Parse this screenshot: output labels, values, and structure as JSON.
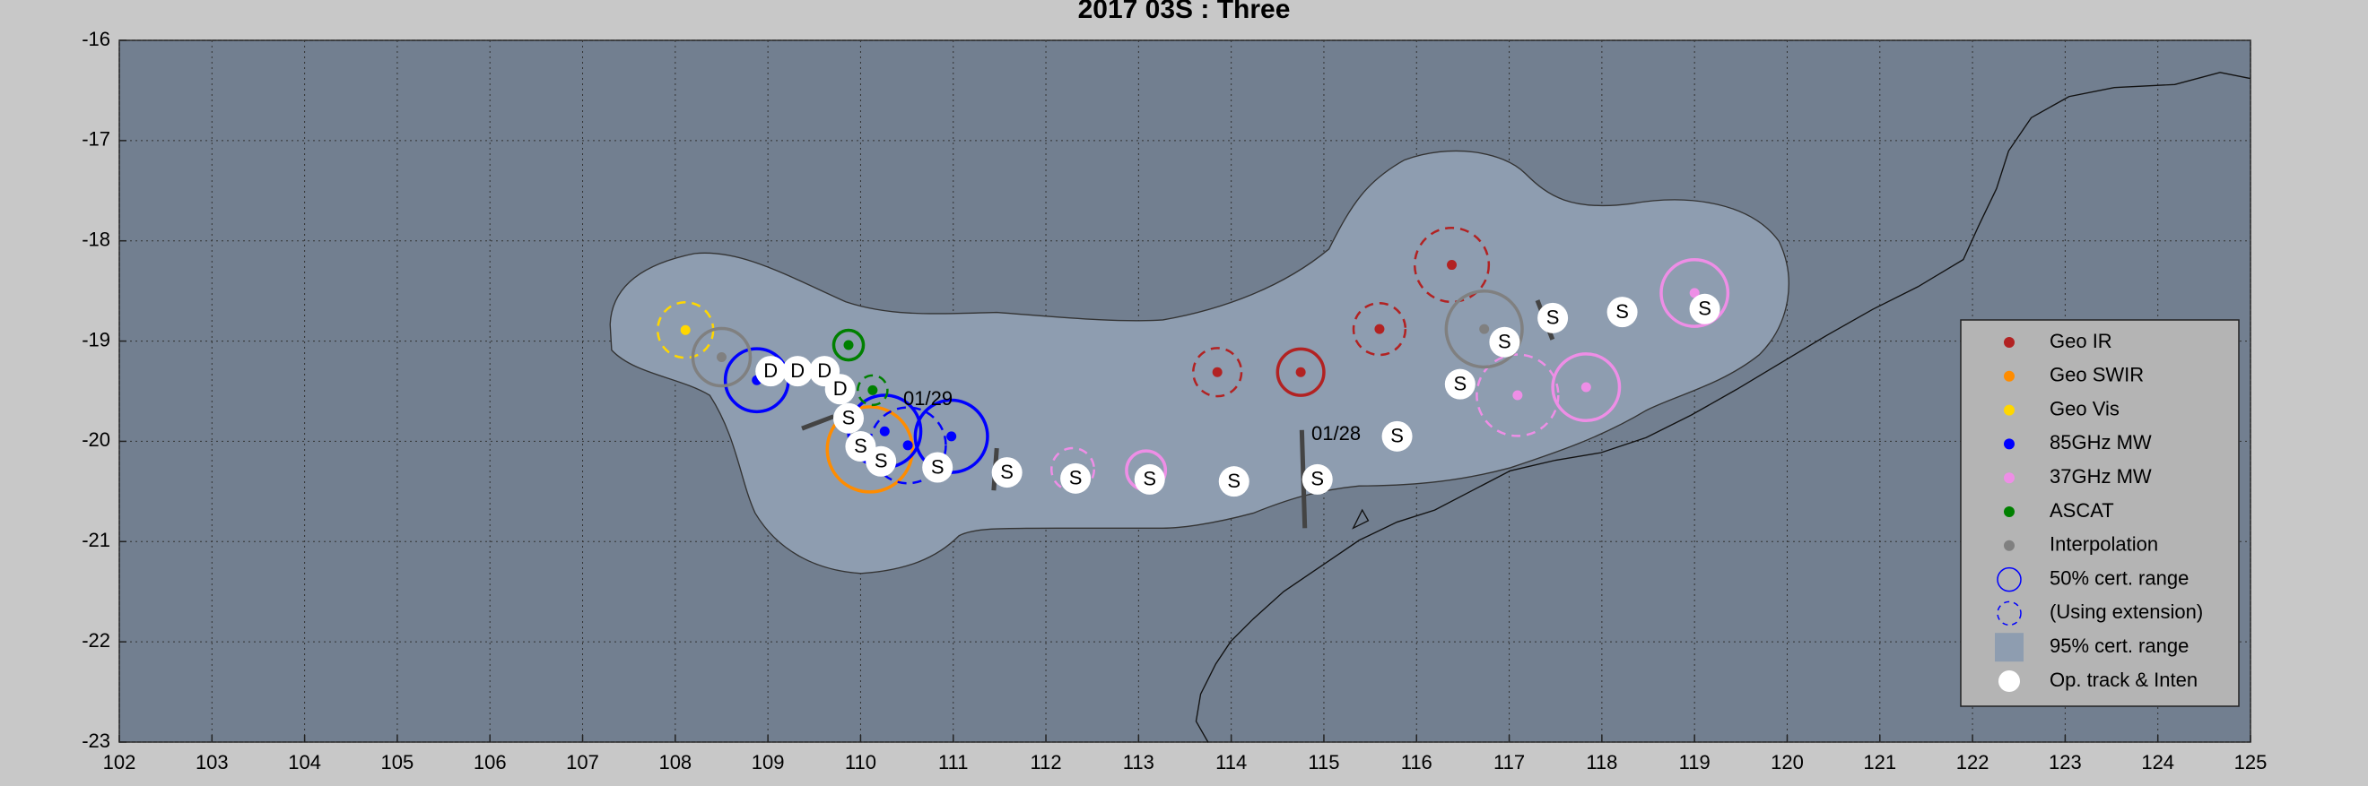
{
  "chart_data": {
    "type": "scatter",
    "title": "2017  03S :  Three",
    "xlim": [
      102,
      125
    ],
    "ylim": [
      -23,
      -16
    ],
    "xticks": [
      102,
      103,
      104,
      105,
      106,
      107,
      108,
      109,
      110,
      111,
      112,
      113,
      114,
      115,
      116,
      117,
      118,
      119,
      120,
      121,
      122,
      123,
      124,
      125
    ],
    "yticks": [
      -16,
      -17,
      -18,
      -19,
      -20,
      -21,
      -22,
      -23
    ],
    "grid": true,
    "legend": "east",
    "series": [
      {
        "name": "Geo IR",
        "color": "#b22222",
        "x": [
          113.85,
          114.75,
          115.6,
          116.38
        ],
        "values": [
          -19.31,
          -19.31,
          -18.88,
          -18.24
        ],
        "radii": [
          0.26,
          0.25,
          0.28,
          0.4
        ],
        "styles": [
          "dashed",
          "solid",
          "dashed",
          "dashed"
        ]
      },
      {
        "name": "Geo SWIR",
        "color": "#ff8c00",
        "x": [
          110.1
        ],
        "values": [
          -20.08
        ],
        "radii": [
          0.46
        ],
        "styles": [
          "solid"
        ]
      },
      {
        "name": "Geo Vis",
        "color": "#ffd700",
        "x": [
          108.11
        ],
        "values": [
          -18.89
        ],
        "radii": [
          0.3
        ],
        "styles": [
          "dashed"
        ]
      },
      {
        "name": "85GHz MW",
        "color": "#0000ff",
        "x": [
          108.88,
          110.26,
          110.51,
          110.98
        ],
        "values": [
          -19.39,
          -19.9,
          -20.04,
          -19.95
        ],
        "radii": [
          0.34,
          0.39,
          0.41,
          0.39
        ],
        "styles": [
          "solid",
          "solid",
          "dashed",
          "solid"
        ]
      },
      {
        "name": "37GHz MW",
        "color": "#ee8ee6",
        "x": [
          112.29,
          113.08,
          117.09,
          117.83,
          119.0
        ],
        "values": [
          -20.28,
          -20.29,
          -19.54,
          -19.46,
          -18.52
        ],
        "radii": [
          0.23,
          0.21,
          0.44,
          0.36,
          0.36
        ],
        "styles": [
          "dashed",
          "solid",
          "dashed",
          "solid",
          "solid"
        ]
      },
      {
        "name": "ASCAT",
        "color": "#008000",
        "x": [
          109.87,
          110.13
        ],
        "values": [
          -19.04,
          -19.49
        ],
        "radii": [
          0.16,
          0.16
        ],
        "styles": [
          "solid",
          "dashed"
        ]
      },
      {
        "name": "Interpolation",
        "color": "#808080",
        "x": [
          108.5,
          116.73
        ],
        "values": [
          -19.16,
          -18.88
        ],
        "radii": [
          0.31,
          0.41
        ],
        "styles": [
          "solid",
          "solid"
        ]
      },
      {
        "name": "Op. track & Inten",
        "color": "#ffffff",
        "x": [
          109.03,
          109.32,
          109.61,
          109.78,
          109.87,
          110.0,
          110.22,
          110.83,
          111.58,
          112.32,
          113.12,
          114.03,
          114.93,
          115.79,
          116.47,
          116.95,
          117.47,
          118.22,
          119.11
        ],
        "values": [
          -19.3,
          -19.3,
          -19.3,
          -19.48,
          -19.77,
          -20.05,
          -20.2,
          -20.26,
          -20.31,
          -20.37,
          -20.38,
          -20.4,
          -20.38,
          -19.95,
          -19.43,
          -19.01,
          -18.77,
          -18.71,
          -18.68
        ],
        "labels": [
          "D",
          "D",
          "D",
          "D",
          "S",
          "S",
          "S",
          "S",
          "S",
          "S",
          "S",
          "S",
          "S",
          "S",
          "S",
          "S",
          "S",
          "S",
          "S"
        ]
      }
    ],
    "legend_extras": [
      "50% cert. range",
      "(Using extension)",
      "95% cert. range"
    ],
    "annotations": [
      "01/29",
      "01/28"
    ]
  }
}
